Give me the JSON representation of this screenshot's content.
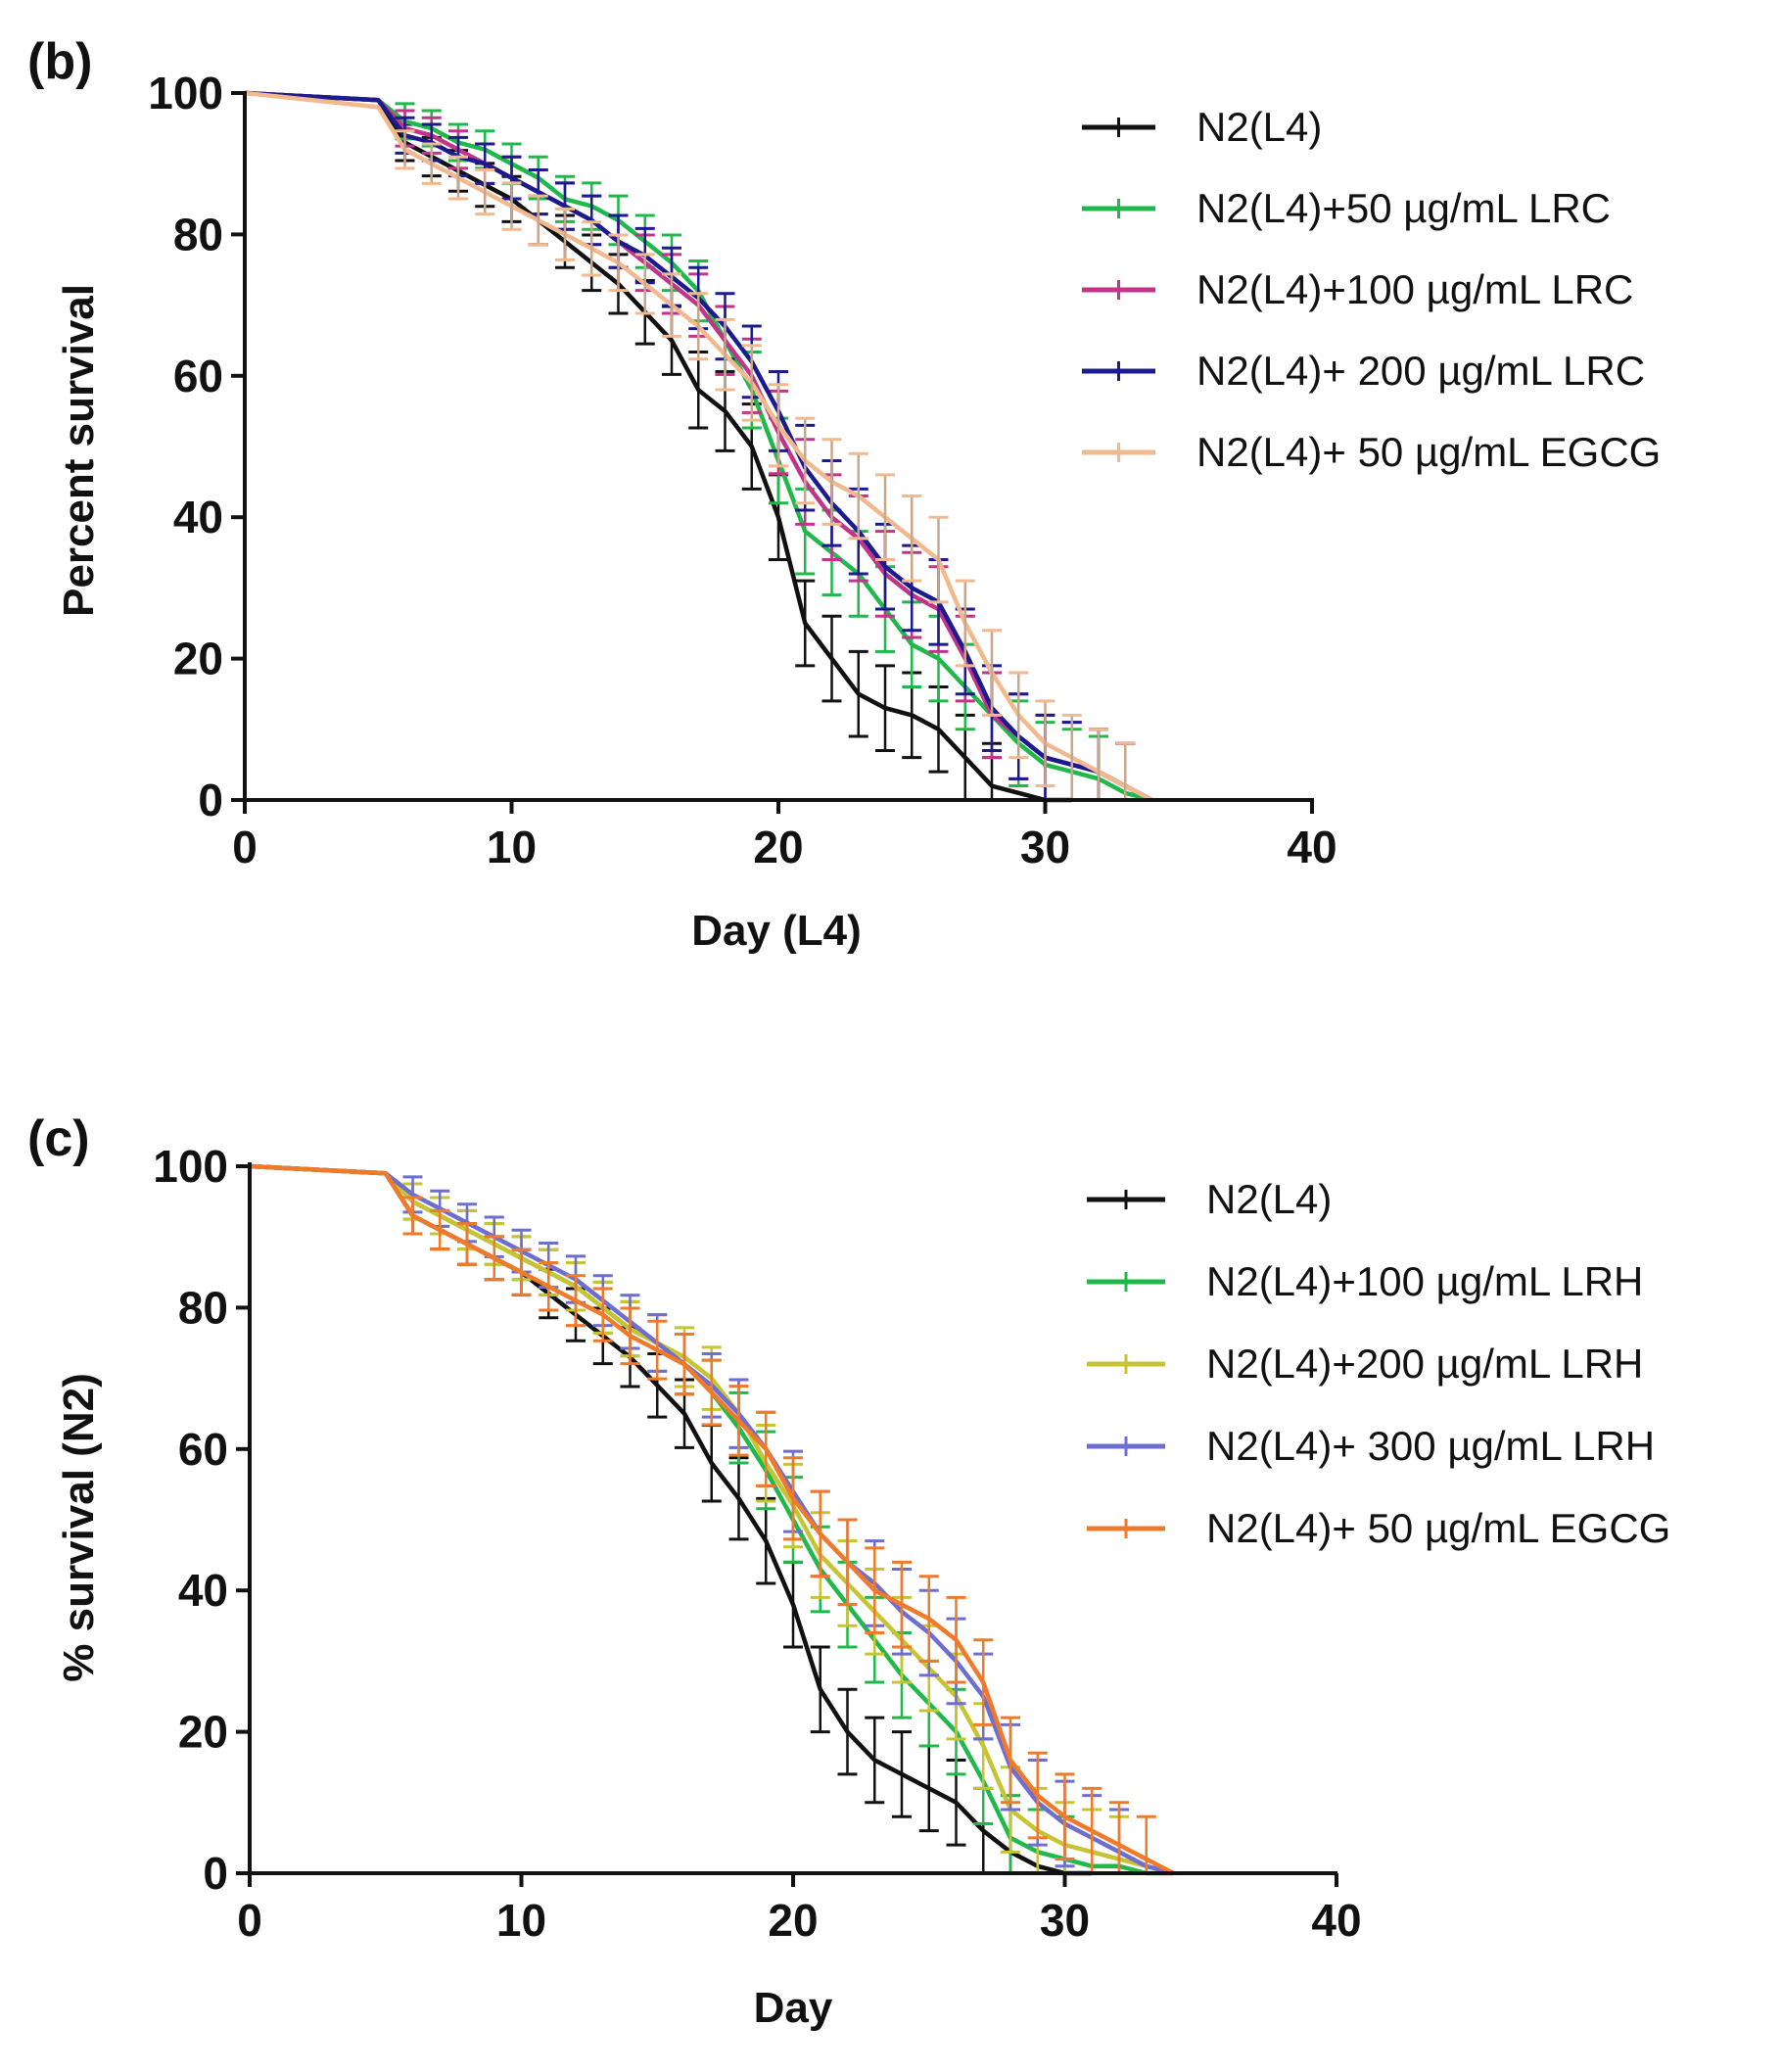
{
  "chart_data": [
    {
      "panel_label": "(b)",
      "type": "line",
      "xlabel": "Day (L4)",
      "ylabel": "Percent survival",
      "xlim": [
        0,
        40
      ],
      "ylim": [
        0,
        100
      ],
      "xticks": [
        "0",
        "10",
        "20",
        "30",
        "40"
      ],
      "yticks": [
        "0",
        "20",
        "40",
        "60",
        "80",
        "100"
      ],
      "legend_position": "top-right",
      "series": [
        {
          "name": "N2(L4)",
          "color": "#111111",
          "x": [
            0,
            5,
            6,
            7,
            8,
            9,
            10,
            11,
            12,
            13,
            14,
            15,
            16,
            17,
            18,
            19,
            20,
            21,
            22,
            23,
            24,
            25,
            26,
            27,
            28,
            29,
            30,
            31
          ],
          "y": [
            100,
            99,
            93,
            91,
            89,
            87,
            85,
            82,
            79,
            76,
            73,
            69,
            65,
            58,
            55,
            50,
            40,
            25,
            20,
            15,
            13,
            12,
            10,
            6,
            2,
            1,
            0,
            0
          ]
        },
        {
          "name": "N2(L4)+50 µg/mL LRC",
          "color": "#1fb84a",
          "x": [
            0,
            5,
            6,
            7,
            8,
            9,
            10,
            11,
            12,
            13,
            14,
            15,
            16,
            17,
            18,
            19,
            20,
            21,
            22,
            23,
            24,
            25,
            26,
            27,
            28,
            29,
            30,
            31,
            32,
            33,
            34
          ],
          "y": [
            100,
            99,
            96,
            95,
            93,
            92,
            90,
            88,
            85,
            84,
            82,
            79,
            76,
            72,
            65,
            58,
            48,
            38,
            35,
            32,
            27,
            22,
            20,
            16,
            12,
            8,
            5,
            4,
            3,
            1,
            0
          ]
        },
        {
          "name": "N2(L4)+100 µg/mL LRC",
          "color": "#c2338a",
          "x": [
            0,
            5,
            6,
            7,
            8,
            9,
            10,
            11,
            12,
            13,
            14,
            15,
            16,
            17,
            18,
            19,
            20,
            21,
            22,
            23,
            24,
            25,
            26,
            27,
            28,
            29,
            30,
            31,
            32,
            33,
            34
          ],
          "y": [
            100,
            99,
            95,
            94,
            92,
            90,
            88,
            86,
            84,
            82,
            79,
            76,
            73,
            70,
            65,
            60,
            52,
            45,
            40,
            37,
            32,
            29,
            27,
            20,
            12,
            9,
            6,
            5,
            4,
            2,
            0
          ]
        },
        {
          "name": "N2(L4)+ 200 µg/mL LRC",
          "color": "#1b1b8f",
          "x": [
            0,
            5,
            6,
            7,
            8,
            9,
            10,
            11,
            12,
            13,
            14,
            15,
            16,
            17,
            18,
            19,
            20,
            21,
            22,
            23,
            24,
            25,
            26,
            27,
            28,
            29,
            30,
            31,
            32,
            33,
            34
          ],
          "y": [
            100,
            99,
            94,
            93,
            91,
            90,
            88,
            86,
            84,
            82,
            79,
            77,
            74,
            71,
            67,
            62,
            55,
            47,
            42,
            38,
            33,
            30,
            28,
            21,
            13,
            9,
            6,
            5,
            4,
            2,
            0
          ]
        },
        {
          "name": "N2(L4)+ 50 µg/mL EGCG",
          "color": "#f2b98e",
          "x": [
            0,
            5,
            6,
            7,
            8,
            9,
            10,
            11,
            12,
            13,
            14,
            15,
            16,
            17,
            18,
            19,
            20,
            21,
            22,
            23,
            24,
            25,
            26,
            27,
            28,
            29,
            30,
            31,
            32,
            33,
            34
          ],
          "y": [
            100,
            98,
            92,
            90,
            88,
            86,
            84,
            82,
            80,
            78,
            76,
            73,
            70,
            67,
            63,
            59,
            53,
            48,
            45,
            43,
            40,
            37,
            34,
            25,
            18,
            12,
            8,
            6,
            4,
            2,
            0
          ]
        }
      ]
    },
    {
      "panel_label": "(c)",
      "type": "line",
      "xlabel": "Day",
      "ylabel": "% survival (N2)",
      "xlim": [
        0,
        40
      ],
      "ylim": [
        0,
        100
      ],
      "xticks": [
        "0",
        "10",
        "20",
        "30",
        "40"
      ],
      "yticks": [
        "0",
        "20",
        "40",
        "60",
        "80",
        "100"
      ],
      "legend_position": "top-right",
      "series": [
        {
          "name": "N2(L4)",
          "color": "#111111",
          "x": [
            0,
            5,
            6,
            7,
            8,
            9,
            10,
            11,
            12,
            13,
            14,
            15,
            16,
            17,
            18,
            19,
            20,
            21,
            22,
            23,
            24,
            25,
            26,
            27,
            28,
            29,
            30,
            31
          ],
          "y": [
            100,
            99,
            93,
            91,
            89,
            87,
            85,
            82,
            79,
            76,
            73,
            69,
            65,
            58,
            53,
            47,
            38,
            26,
            20,
            16,
            14,
            12,
            10,
            6,
            3,
            1,
            0,
            0
          ]
        },
        {
          "name": "N2(L4)+100 µg/mL LRH",
          "color": "#1fb84a",
          "x": [
            0,
            5,
            6,
            7,
            8,
            9,
            10,
            11,
            12,
            13,
            14,
            15,
            16,
            17,
            18,
            19,
            20,
            21,
            22,
            23,
            24,
            25,
            26,
            27,
            28,
            29,
            30,
            31,
            32,
            33,
            34
          ],
          "y": [
            100,
            99,
            95,
            93,
            91,
            89,
            87,
            85,
            83,
            80,
            77,
            75,
            72,
            68,
            63,
            57,
            50,
            43,
            38,
            33,
            28,
            24,
            20,
            13,
            5,
            3,
            2,
            1,
            1,
            0,
            0
          ]
        },
        {
          "name": "N2(L4)+200 µg/mL LRH",
          "color": "#c8c431",
          "x": [
            0,
            5,
            6,
            7,
            8,
            9,
            10,
            11,
            12,
            13,
            14,
            15,
            16,
            17,
            18,
            19,
            20,
            21,
            22,
            23,
            24,
            25,
            26,
            27,
            28,
            29,
            30,
            31,
            32,
            33,
            34
          ],
          "y": [
            100,
            99,
            95,
            93,
            91,
            89,
            87,
            85,
            83,
            80,
            77,
            75,
            73,
            70,
            65,
            58,
            52,
            45,
            41,
            37,
            33,
            29,
            25,
            18,
            9,
            6,
            4,
            3,
            2,
            1,
            0
          ]
        },
        {
          "name": "N2(L4)+ 300 µg/mL LRH",
          "color": "#6e6ed1",
          "x": [
            0,
            5,
            6,
            7,
            8,
            9,
            10,
            11,
            12,
            13,
            14,
            15,
            16,
            17,
            18,
            19,
            20,
            21,
            22,
            23,
            24,
            25,
            26,
            27,
            28,
            29,
            30,
            31,
            32,
            33,
            34
          ],
          "y": [
            100,
            99,
            96,
            94,
            92,
            90,
            88,
            86,
            84,
            81,
            78,
            75,
            72,
            69,
            65,
            60,
            54,
            48,
            44,
            41,
            37,
            34,
            30,
            25,
            15,
            10,
            7,
            5,
            3,
            1,
            0
          ]
        },
        {
          "name": "N2(L4)+ 50 µg/mL EGCG",
          "color": "#f07a2a",
          "x": [
            0,
            5,
            6,
            7,
            8,
            9,
            10,
            11,
            12,
            13,
            14,
            15,
            16,
            17,
            18,
            19,
            20,
            21,
            22,
            23,
            24,
            25,
            26,
            27,
            28,
            29,
            30,
            31,
            32,
            33,
            34
          ],
          "y": [
            100,
            99,
            93,
            91,
            89,
            87,
            85,
            83,
            81,
            79,
            76,
            74,
            72,
            68,
            64,
            60,
            53,
            48,
            44,
            40,
            38,
            36,
            33,
            27,
            16,
            11,
            8,
            6,
            4,
            2,
            0
          ]
        }
      ]
    }
  ]
}
